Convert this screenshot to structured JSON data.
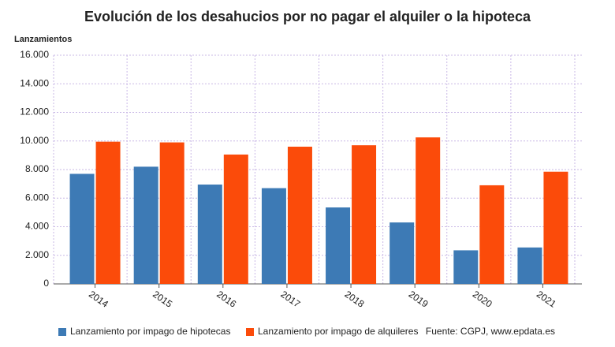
{
  "chart_data": {
    "type": "bar",
    "title": "Evolución de los desahucios por no pagar el alquiler o la hipoteca",
    "y_label": "Lanzamientos",
    "source": "Fuente: CGPJ, www.epdata.es",
    "categories": [
      "2014",
      "2015",
      "2016",
      "2017",
      "2018",
      "2019",
      "2020",
      "2021"
    ],
    "series": [
      {
        "name": "Lanzamiento por impago de hipotecas",
        "color": "#3d7ab5",
        "values": [
          7700,
          8200,
          6950,
          6700,
          5350,
          4300,
          2350,
          2550
        ]
      },
      {
        "name": "Lanzamiento por impago de alquileres",
        "color": "#fb4b0a",
        "values": [
          9950,
          9900,
          9050,
          9600,
          9700,
          10250,
          6900,
          7850
        ]
      }
    ],
    "ylim": [
      0,
      16000
    ],
    "yticks": [
      0,
      {
        "value": 2000,
        "label": "2.000"
      },
      {
        "value": 4000,
        "label": "4.000"
      },
      {
        "value": 6000,
        "label": "6.000"
      },
      {
        "value": 8000,
        "label": "8.000"
      },
      {
        "value": 10000,
        "label": "10.000"
      },
      {
        "value": 12000,
        "label": "12.000"
      },
      {
        "value": 14000,
        "label": "14.000"
      },
      {
        "value": 16000,
        "label": "16.000"
      }
    ],
    "grid": true
  }
}
